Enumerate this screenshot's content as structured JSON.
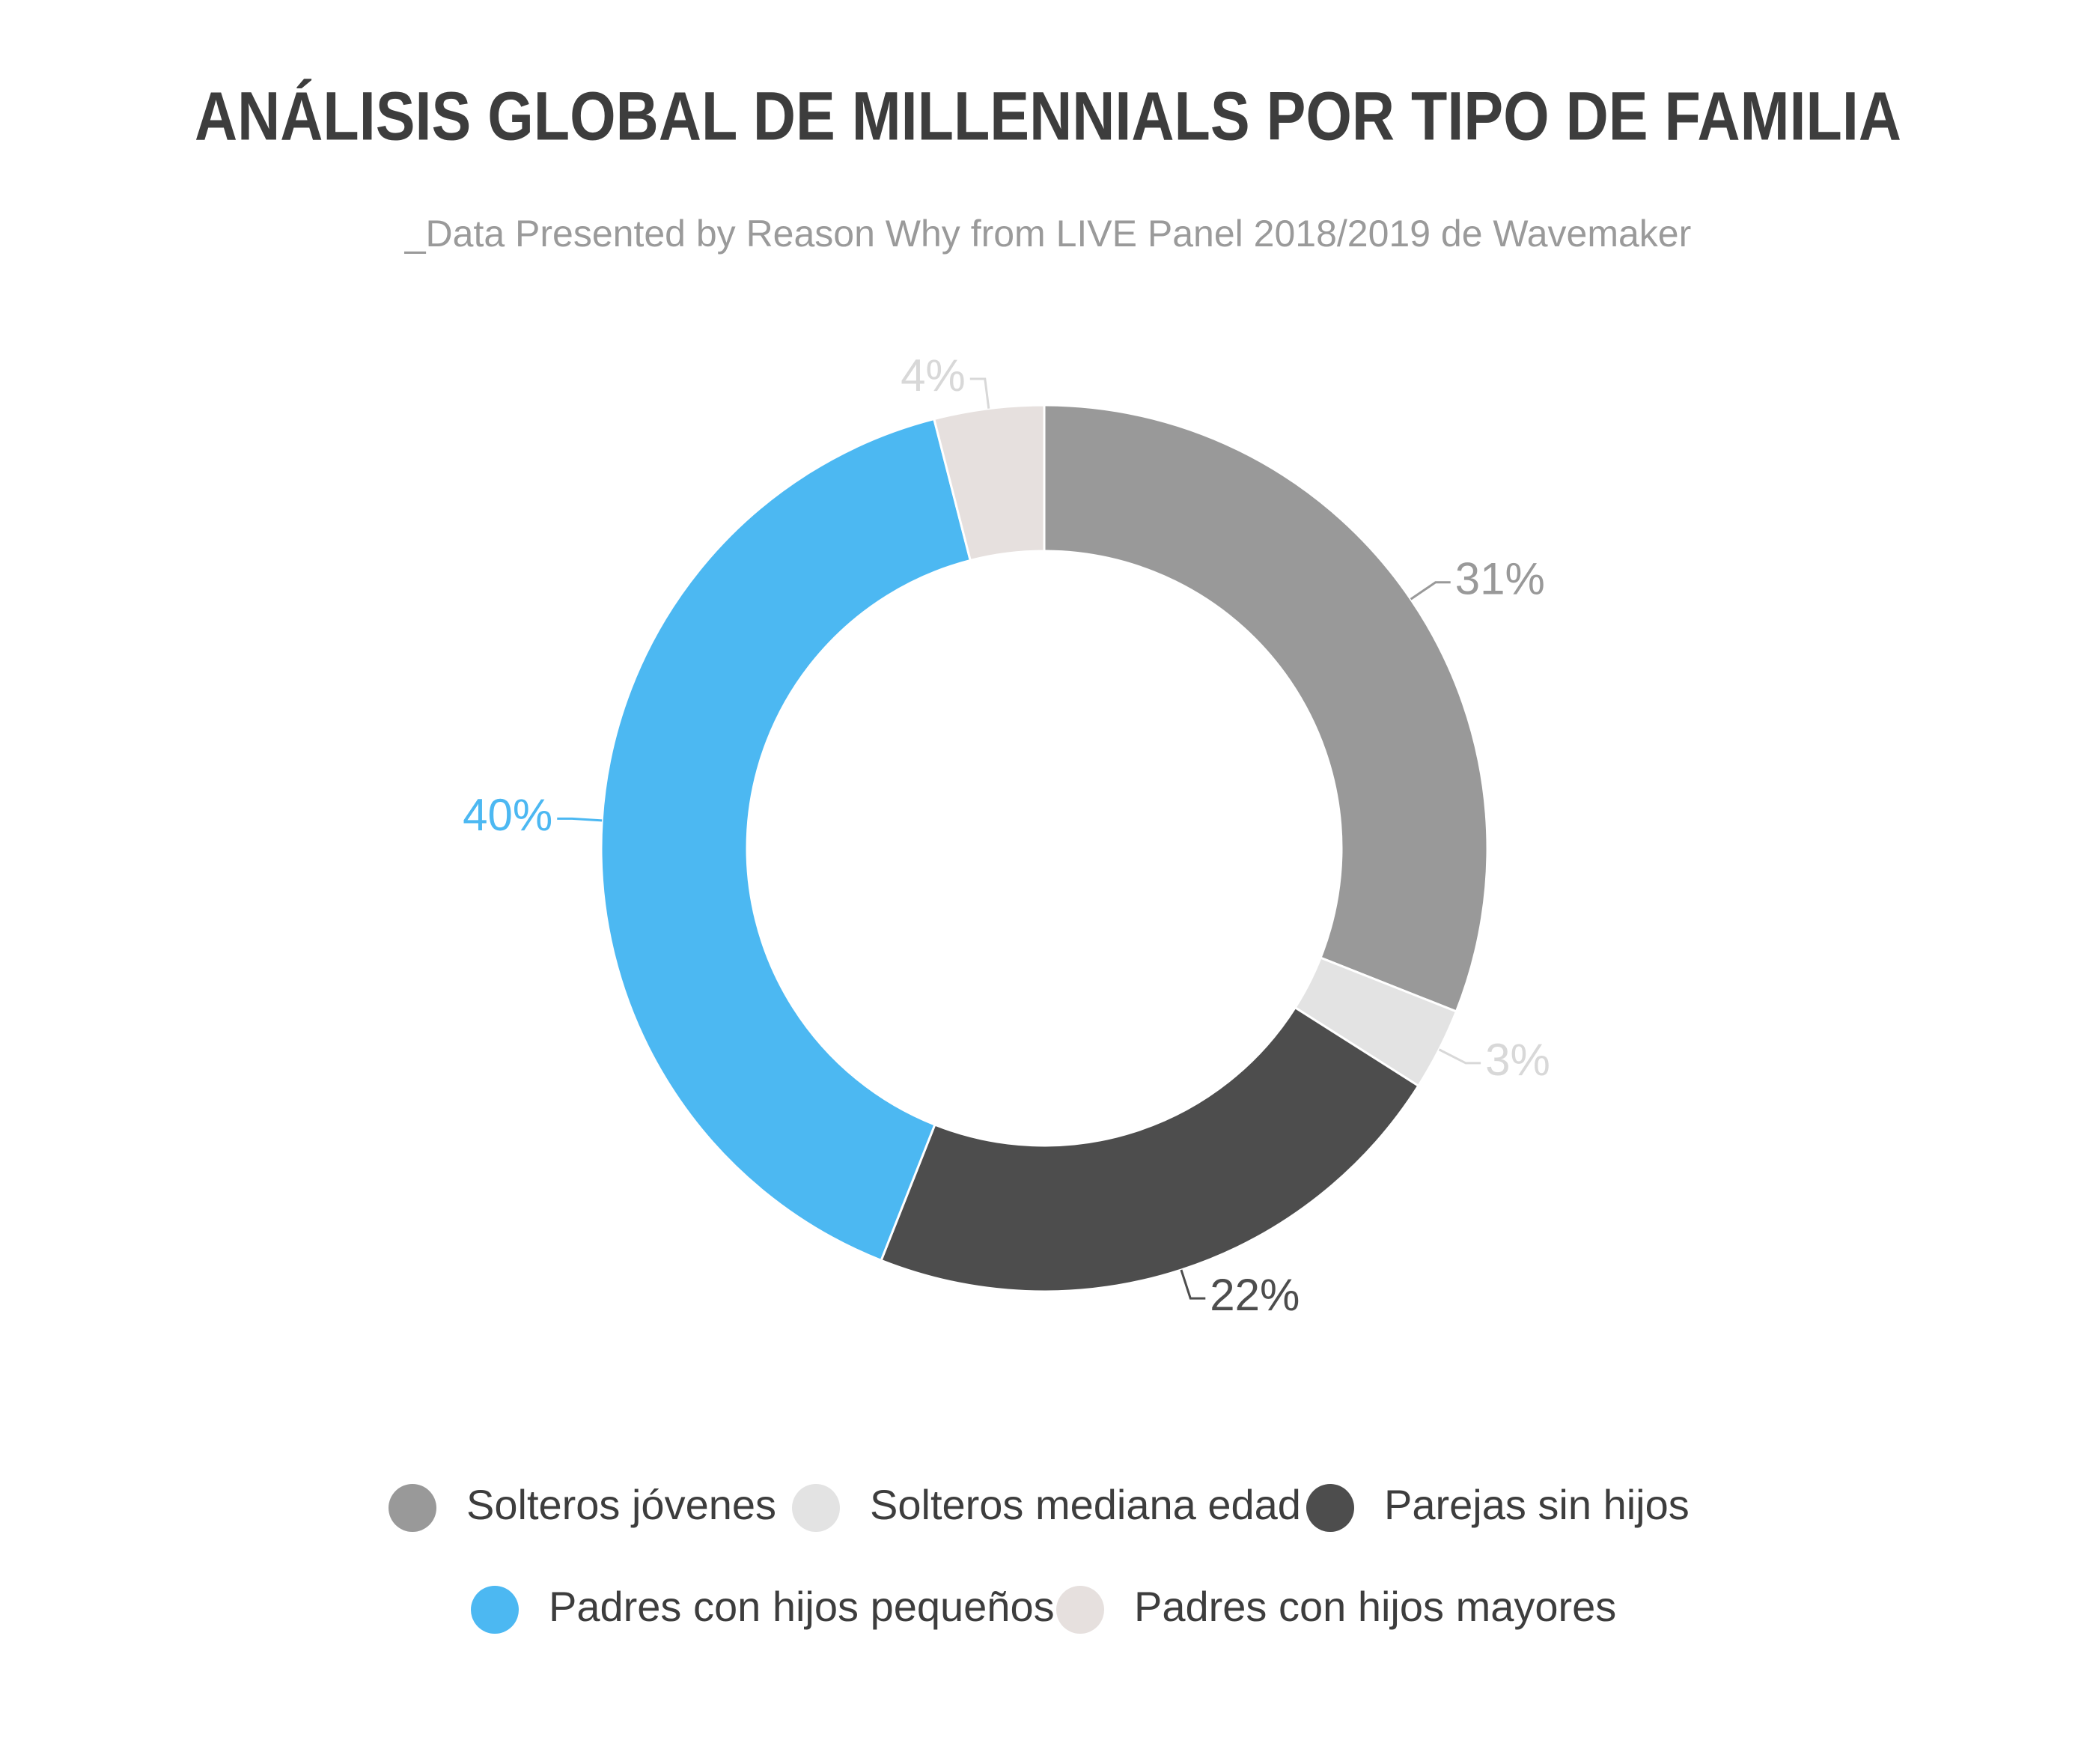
{
  "chart_data": {
    "type": "pie",
    "title": "ANÁLISIS GLOBAL DE MILLENNIALS POR TIPO DE FAMILIA",
    "subtitle": "_Data Presented by Reason Why from LIVE Panel 2018/2019 de Wavemaker",
    "categories": [
      "Solteros jóvenes",
      "Solteros mediana edad",
      "Parejas sin hijos",
      "Padres con hijos pequeños",
      "Padres con hijos mayores"
    ],
    "values": [
      31,
      3,
      22,
      40,
      4
    ],
    "value_labels": [
      "31%",
      "3%",
      "22%",
      "40%",
      "4%"
    ],
    "colors": [
      "#999999",
      "#e3e3e3",
      "#4d4d4d",
      "#4cb8f2",
      "#e6e0de"
    ],
    "donut": true,
    "legend": "bottom"
  }
}
